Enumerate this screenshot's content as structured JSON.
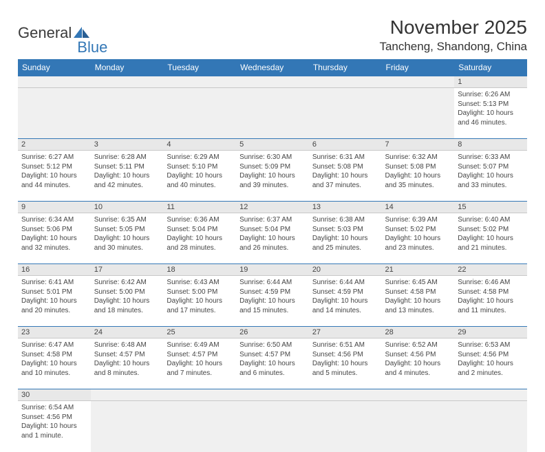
{
  "brand": {
    "part1": "General",
    "part2": "Blue"
  },
  "title": "November 2025",
  "location": "Tancheng, Shandong, China",
  "dayNames": [
    "Sunday",
    "Monday",
    "Tuesday",
    "Wednesday",
    "Thursday",
    "Friday",
    "Saturday"
  ],
  "colors": {
    "headerBg": "#3377b6",
    "headerText": "#ffffff",
    "dayNumBg": "#e8e8e8",
    "emptyBg": "#f0f0f0",
    "borderTop": "#3377b6",
    "cellBorder": "#c8c8c8",
    "text": "#444444"
  },
  "firstDayOffset": 6,
  "daysInMonth": 30,
  "days": {
    "1": {
      "sunrise": "6:26 AM",
      "sunset": "5:13 PM",
      "daylight": "10 hours and 46 minutes."
    },
    "2": {
      "sunrise": "6:27 AM",
      "sunset": "5:12 PM",
      "daylight": "10 hours and 44 minutes."
    },
    "3": {
      "sunrise": "6:28 AM",
      "sunset": "5:11 PM",
      "daylight": "10 hours and 42 minutes."
    },
    "4": {
      "sunrise": "6:29 AM",
      "sunset": "5:10 PM",
      "daylight": "10 hours and 40 minutes."
    },
    "5": {
      "sunrise": "6:30 AM",
      "sunset": "5:09 PM",
      "daylight": "10 hours and 39 minutes."
    },
    "6": {
      "sunrise": "6:31 AM",
      "sunset": "5:08 PM",
      "daylight": "10 hours and 37 minutes."
    },
    "7": {
      "sunrise": "6:32 AM",
      "sunset": "5:08 PM",
      "daylight": "10 hours and 35 minutes."
    },
    "8": {
      "sunrise": "6:33 AM",
      "sunset": "5:07 PM",
      "daylight": "10 hours and 33 minutes."
    },
    "9": {
      "sunrise": "6:34 AM",
      "sunset": "5:06 PM",
      "daylight": "10 hours and 32 minutes."
    },
    "10": {
      "sunrise": "6:35 AM",
      "sunset": "5:05 PM",
      "daylight": "10 hours and 30 minutes."
    },
    "11": {
      "sunrise": "6:36 AM",
      "sunset": "5:04 PM",
      "daylight": "10 hours and 28 minutes."
    },
    "12": {
      "sunrise": "6:37 AM",
      "sunset": "5:04 PM",
      "daylight": "10 hours and 26 minutes."
    },
    "13": {
      "sunrise": "6:38 AM",
      "sunset": "5:03 PM",
      "daylight": "10 hours and 25 minutes."
    },
    "14": {
      "sunrise": "6:39 AM",
      "sunset": "5:02 PM",
      "daylight": "10 hours and 23 minutes."
    },
    "15": {
      "sunrise": "6:40 AM",
      "sunset": "5:02 PM",
      "daylight": "10 hours and 21 minutes."
    },
    "16": {
      "sunrise": "6:41 AM",
      "sunset": "5:01 PM",
      "daylight": "10 hours and 20 minutes."
    },
    "17": {
      "sunrise": "6:42 AM",
      "sunset": "5:00 PM",
      "daylight": "10 hours and 18 minutes."
    },
    "18": {
      "sunrise": "6:43 AM",
      "sunset": "5:00 PM",
      "daylight": "10 hours and 17 minutes."
    },
    "19": {
      "sunrise": "6:44 AM",
      "sunset": "4:59 PM",
      "daylight": "10 hours and 15 minutes."
    },
    "20": {
      "sunrise": "6:44 AM",
      "sunset": "4:59 PM",
      "daylight": "10 hours and 14 minutes."
    },
    "21": {
      "sunrise": "6:45 AM",
      "sunset": "4:58 PM",
      "daylight": "10 hours and 13 minutes."
    },
    "22": {
      "sunrise": "6:46 AM",
      "sunset": "4:58 PM",
      "daylight": "10 hours and 11 minutes."
    },
    "23": {
      "sunrise": "6:47 AM",
      "sunset": "4:58 PM",
      "daylight": "10 hours and 10 minutes."
    },
    "24": {
      "sunrise": "6:48 AM",
      "sunset": "4:57 PM",
      "daylight": "10 hours and 8 minutes."
    },
    "25": {
      "sunrise": "6:49 AM",
      "sunset": "4:57 PM",
      "daylight": "10 hours and 7 minutes."
    },
    "26": {
      "sunrise": "6:50 AM",
      "sunset": "4:57 PM",
      "daylight": "10 hours and 6 minutes."
    },
    "27": {
      "sunrise": "6:51 AM",
      "sunset": "4:56 PM",
      "daylight": "10 hours and 5 minutes."
    },
    "28": {
      "sunrise": "6:52 AM",
      "sunset": "4:56 PM",
      "daylight": "10 hours and 4 minutes."
    },
    "29": {
      "sunrise": "6:53 AM",
      "sunset": "4:56 PM",
      "daylight": "10 hours and 2 minutes."
    },
    "30": {
      "sunrise": "6:54 AM",
      "sunset": "4:56 PM",
      "daylight": "10 hours and 1 minute."
    }
  },
  "labels": {
    "sunrise": "Sunrise:",
    "sunset": "Sunset:",
    "daylight": "Daylight:"
  }
}
